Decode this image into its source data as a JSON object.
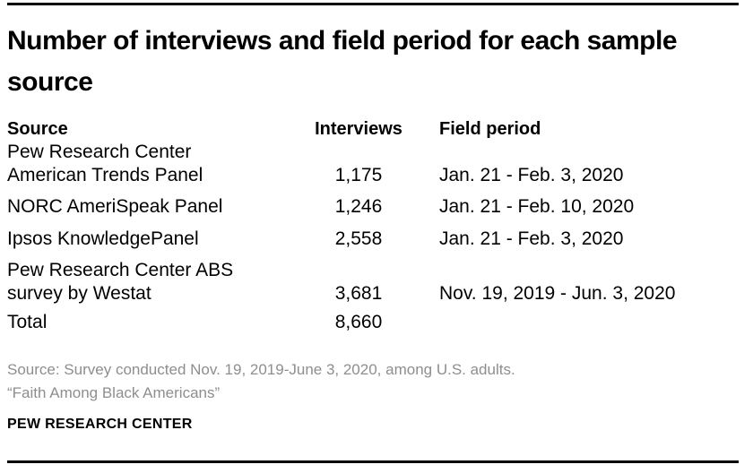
{
  "title": "Number of interviews and field period for each sample source",
  "table": {
    "headers": {
      "source": "Source",
      "interviews": "Interviews",
      "field_period": "Field period"
    },
    "rows": [
      {
        "source": [
          "Pew Research Center",
          "American Trends Panel"
        ],
        "interviews": "1,175",
        "field_period": "Jan. 21 - Feb. 3, 2020"
      },
      {
        "source": "NORC AmeriSpeak Panel",
        "interviews": "1,246",
        "field_period": "Jan. 21 - Feb. 10, 2020"
      },
      {
        "source": "Ipsos KnowledgePanel",
        "interviews": "2,558",
        "field_period": "Jan. 21 - Feb. 3, 2020"
      },
      {
        "source": [
          "Pew Research Center ABS",
          "survey by Westat"
        ],
        "interviews": "3,681",
        "field_period": "Nov. 19, 2019 - Jun. 3, 2020"
      },
      {
        "source": "Total",
        "interviews": "8,660",
        "field_period": ""
      }
    ]
  },
  "footer": {
    "source_note": "Source: Survey conducted Nov. 19, 2019-June 3, 2020, among U.S. adults.",
    "report_title": "“Faith Among Black Americans”",
    "branding": "PEW RESEARCH CENTER"
  },
  "colors": {
    "text": "#000000",
    "muted_text": "#8e8e8e",
    "rule": "#000000",
    "background": "#ffffff"
  },
  "chart_data": {
    "type": "table",
    "title": "Number of interviews and field period for each sample source",
    "columns": [
      "Source",
      "Interviews",
      "Field period"
    ],
    "rows": [
      [
        "Pew Research Center American Trends Panel",
        "1,175",
        "Jan. 21 - Feb. 3, 2020"
      ],
      [
        "NORC AmeriSpeak Panel",
        "1,246",
        "Jan. 21 - Feb. 10, 2020"
      ],
      [
        "Ipsos KnowledgePanel",
        "2,558",
        "Jan. 21 - Feb. 3, 2020"
      ],
      [
        "Pew Research Center ABS survey by Westat",
        "3,681",
        "Nov. 19, 2019 - Jun. 3, 2020"
      ],
      [
        "Total",
        "8,660",
        ""
      ]
    ],
    "interviews_values": [
      1175,
      1246,
      2558,
      3681
    ],
    "interviews_total": 8660,
    "source_note": "Source: Survey conducted Nov. 19, 2019-June 3, 2020, among U.S. adults.",
    "report_title": "“Faith Among Black Americans”",
    "branding": "PEW RESEARCH CENTER"
  }
}
